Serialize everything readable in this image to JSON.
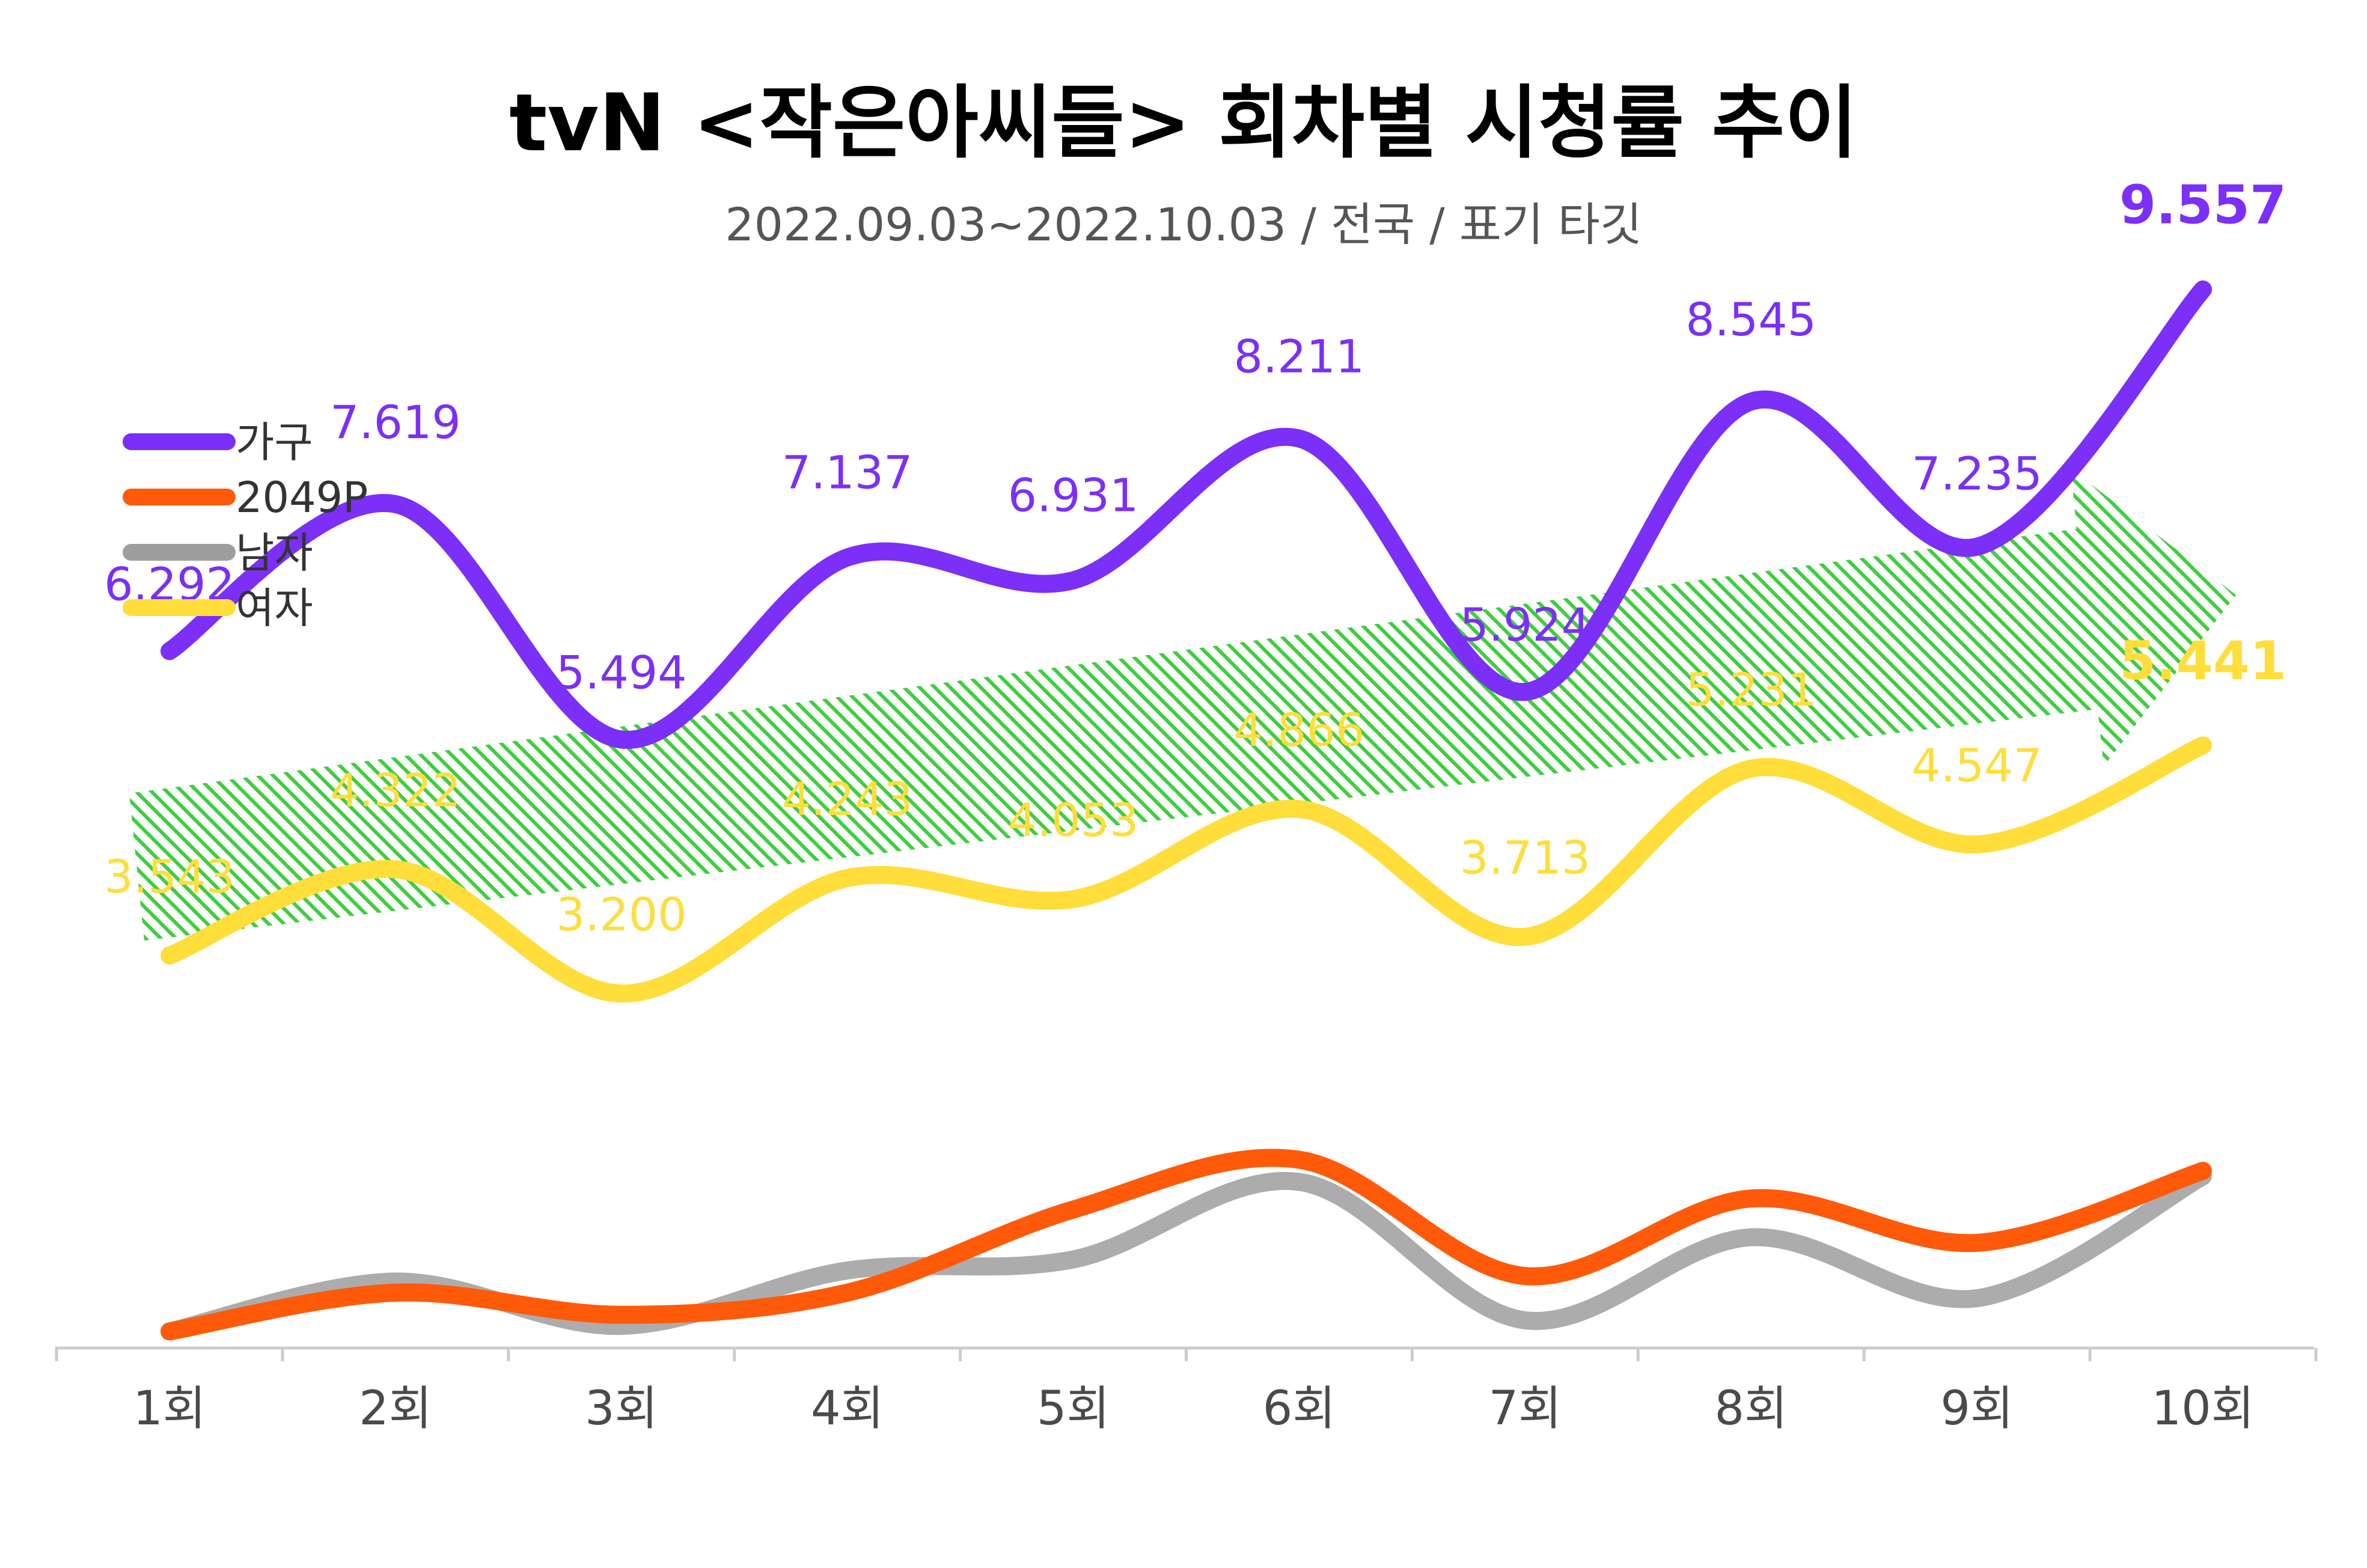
{
  "chart_data": {
    "type": "line",
    "title": "tvN <작은아씨들> 회차별 시청률 추이",
    "subtitle": "2022.09.03~2022.10.03 / 전국 / 표기 타깃",
    "categories": [
      "1회",
      "2회",
      "3회",
      "4회",
      "5회",
      "6회",
      "7회",
      "8회",
      "9회",
      "10회"
    ],
    "series": [
      {
        "name": "가구",
        "color": "#7B2FF7",
        "labeled": true,
        "values": [
          6.292,
          7.619,
          5.494,
          7.137,
          6.931,
          8.211,
          5.924,
          8.545,
          7.235,
          9.557
        ]
      },
      {
        "name": "2049P",
        "color": "#FF5A0A",
        "labeled": false,
        "values": [
          0.15,
          0.5,
          0.3,
          0.5,
          1.25,
          1.7,
          0.65,
          1.35,
          0.95,
          1.6
        ]
      },
      {
        "name": "남자",
        "color": "#9E9E9E",
        "labeled": false,
        "values": [
          0.15,
          0.6,
          0.2,
          0.7,
          0.8,
          1.5,
          0.25,
          1.0,
          0.45,
          1.55
        ]
      },
      {
        "name": "여자",
        "color": "#FFDE3B",
        "labeled": true,
        "values": [
          3.543,
          4.322,
          3.2,
          4.243,
          4.053,
          4.866,
          3.713,
          5.231,
          4.547,
          5.441
        ]
      }
    ],
    "ylim": [
      0,
      10
    ],
    "xlabel": "",
    "ylabel": "",
    "legend_position": "top-left",
    "grid": false,
    "annotation": "upward trend arrow"
  }
}
